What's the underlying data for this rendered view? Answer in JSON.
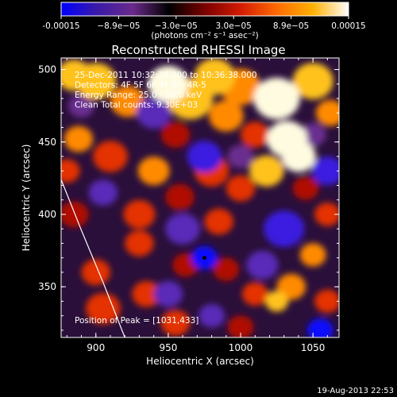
{
  "chart_data": {
    "type": "heatmap",
    "title": "Reconstructed RHESSI Image",
    "colorbar": {
      "tick_labels": [
        "-0.00015",
        "−8.9e−05",
        "−3.0e−05",
        "3.0e−05",
        "8.9e−05",
        "0.00015"
      ],
      "label": "(photons cm⁻² s⁻¹ asec⁻²)",
      "range": [
        -0.00015,
        0.00015
      ],
      "colors": [
        "#0000ff",
        "#3a1aa8",
        "#6a2a8a",
        "#000000",
        "#7a0000",
        "#d21b00",
        "#ff6a00",
        "#ffb000",
        "#ffffff"
      ]
    },
    "xlabel": "Heliocentric X (arcsec)",
    "ylabel": "Heliocentric Y (arcsec)",
    "xlim": [
      876,
      1068
    ],
    "ylim": [
      315,
      508
    ],
    "xticks": [
      900,
      950,
      1000,
      1050
    ],
    "yticks": [
      350,
      400,
      450,
      500
    ],
    "info_lines": [
      "25-Dec-2011 10:32:38.000 to 10:36:38.000",
      "Detectors: 4F 5F 6F 7F 8F, 4R-5",
      "Energy Range: 25.0 - 50.0 keV",
      "Clean    Total counts: 9.30E+03"
    ],
    "peak_label": "Position of Peak = [1031,433]",
    "peak": [
      1031,
      433
    ],
    "limb_curve": [
      [
        876,
        424
      ],
      [
        890,
        389
      ],
      [
        905,
        353
      ],
      [
        920,
        315
      ]
    ],
    "blobs": [
      {
        "x": 885,
        "y": 496,
        "v": 0.75,
        "r": 12
      },
      {
        "x": 900,
        "y": 492,
        "v": 0.85,
        "r": 14
      },
      {
        "x": 922,
        "y": 478,
        "v": 0.6,
        "r": 12
      },
      {
        "x": 950,
        "y": 490,
        "v": 0.9,
        "r": 14
      },
      {
        "x": 965,
        "y": 480,
        "v": 0.8,
        "r": 16
      },
      {
        "x": 982,
        "y": 495,
        "v": 0.85,
        "r": 14
      },
      {
        "x": 1000,
        "y": 488,
        "v": 0.7,
        "r": 14
      },
      {
        "x": 1025,
        "y": 480,
        "v": 0.9,
        "r": 16
      },
      {
        "x": 1050,
        "y": 492,
        "v": 0.75,
        "r": 14
      },
      {
        "x": 1062,
        "y": 470,
        "v": 0.6,
        "r": 10
      },
      {
        "x": 990,
        "y": 468,
        "v": 0.65,
        "r": 12
      },
      {
        "x": 1032,
        "y": 452,
        "v": 0.95,
        "r": 14
      },
      {
        "x": 1040,
        "y": 440,
        "v": 1.0,
        "r": 12
      },
      {
        "x": 1018,
        "y": 430,
        "v": 0.75,
        "r": 12
      },
      {
        "x": 1010,
        "y": 455,
        "v": 0.55,
        "r": 10
      },
      {
        "x": 888,
        "y": 452,
        "v": 0.6,
        "r": 10
      },
      {
        "x": 880,
        "y": 430,
        "v": 0.5,
        "r": 9
      },
      {
        "x": 910,
        "y": 440,
        "v": 0.55,
        "r": 12
      },
      {
        "x": 940,
        "y": 430,
        "v": 0.6,
        "r": 11
      },
      {
        "x": 955,
        "y": 455,
        "v": 0.45,
        "r": 10
      },
      {
        "x": 980,
        "y": 430,
        "v": 0.55,
        "r": 12
      },
      {
        "x": 1000,
        "y": 418,
        "v": 0.5,
        "r": 10
      },
      {
        "x": 958,
        "y": 412,
        "v": 0.45,
        "r": 10
      },
      {
        "x": 985,
        "y": 395,
        "v": 0.55,
        "r": 10
      },
      {
        "x": 930,
        "y": 400,
        "v": 0.55,
        "r": 11
      },
      {
        "x": 930,
        "y": 380,
        "v": 0.5,
        "r": 10
      },
      {
        "x": 900,
        "y": 360,
        "v": 0.5,
        "r": 10
      },
      {
        "x": 885,
        "y": 400,
        "v": 0.45,
        "r": 10
      },
      {
        "x": 905,
        "y": 335,
        "v": 0.55,
        "r": 12
      },
      {
        "x": 935,
        "y": 345,
        "v": 0.5,
        "r": 10
      },
      {
        "x": 955,
        "y": 325,
        "v": 0.5,
        "r": 10
      },
      {
        "x": 990,
        "y": 362,
        "v": 0.45,
        "r": 9
      },
      {
        "x": 1010,
        "y": 345,
        "v": 0.5,
        "r": 9
      },
      {
        "x": 1035,
        "y": 350,
        "v": 0.7,
        "r": 10
      },
      {
        "x": 1025,
        "y": 340,
        "v": 0.8,
        "r": 8
      },
      {
        "x": 1050,
        "y": 372,
        "v": 0.6,
        "r": 9
      },
      {
        "x": 1060,
        "y": 340,
        "v": 0.5,
        "r": 9
      },
      {
        "x": 1060,
        "y": 400,
        "v": 0.5,
        "r": 9
      },
      {
        "x": 1045,
        "y": 418,
        "v": 0.45,
        "r": 9
      },
      {
        "x": 962,
        "y": 365,
        "v": 0.4,
        "r": 9
      },
      {
        "x": 1000,
        "y": 322,
        "v": 0.45,
        "r": 9
      },
      {
        "x": 975,
        "y": 370,
        "v": -1.0,
        "r": 9
      },
      {
        "x": 975,
        "y": 440,
        "v": -0.7,
        "r": 12
      },
      {
        "x": 940,
        "y": 470,
        "v": -0.6,
        "r": 12
      },
      {
        "x": 1060,
        "y": 430,
        "v": -0.7,
        "r": 11
      },
      {
        "x": 1055,
        "y": 320,
        "v": -0.9,
        "r": 9
      },
      {
        "x": 960,
        "y": 390,
        "v": -0.6,
        "r": 12
      },
      {
        "x": 1030,
        "y": 390,
        "v": -0.75,
        "r": 14
      },
      {
        "x": 1015,
        "y": 365,
        "v": -0.6,
        "r": 11
      },
      {
        "x": 950,
        "y": 345,
        "v": -0.5,
        "r": 10
      },
      {
        "x": 905,
        "y": 415,
        "v": -0.5,
        "r": 10
      },
      {
        "x": 1000,
        "y": 440,
        "v": -0.45,
        "r": 9
      },
      {
        "x": 890,
        "y": 475,
        "v": -0.45,
        "r": 9
      },
      {
        "x": 1050,
        "y": 455,
        "v": -0.4,
        "r": 9
      },
      {
        "x": 980,
        "y": 330,
        "v": -0.5,
        "r": 9
      }
    ]
  },
  "timestamp": "19-Aug-2013 22:53"
}
